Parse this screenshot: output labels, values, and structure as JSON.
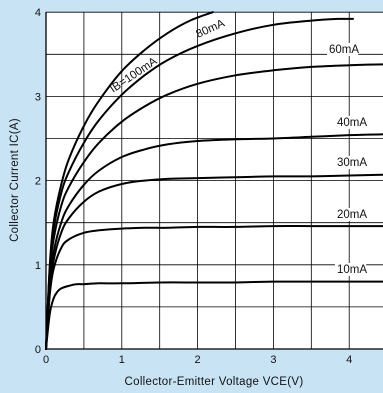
{
  "chart_data": {
    "type": "line",
    "title": "",
    "xlabel": "Collector-Emitter Voltage VCE(V)",
    "ylabel": "Collector Current IC(A)",
    "xlim": [
      0,
      4.45
    ],
    "ylim": [
      0,
      4
    ],
    "x_ticks": [
      "0",
      "1",
      "2",
      "3",
      "4"
    ],
    "y_ticks": [
      "0",
      "1",
      "2",
      "3",
      "4"
    ],
    "grid": true,
    "background_color": "#c8e4f4",
    "plot_color": "#ffffff",
    "line_color": "#000000",
    "series": [
      {
        "name": "IB=100mA",
        "x": [
          0.0,
          0.05,
          0.1,
          0.2,
          0.3,
          0.5,
          0.7,
          1.0,
          1.3,
          1.6,
          1.9,
          2.2
        ],
        "y": [
          0.0,
          1.0,
          1.5,
          1.95,
          2.25,
          2.65,
          2.95,
          3.3,
          3.55,
          3.75,
          3.9,
          4.0
        ]
      },
      {
        "name": "80mA",
        "x": [
          0.0,
          0.05,
          0.1,
          0.2,
          0.3,
          0.5,
          0.7,
          1.0,
          1.3,
          1.6,
          2.0,
          2.5,
          3.0,
          3.5,
          3.85,
          4.05
        ],
        "y": [
          0.0,
          0.95,
          1.42,
          1.85,
          2.1,
          2.45,
          2.72,
          3.02,
          3.25,
          3.43,
          3.6,
          3.75,
          3.85,
          3.9,
          3.92,
          3.92
        ]
      },
      {
        "name": "60mA",
        "x": [
          0.0,
          0.05,
          0.1,
          0.2,
          0.3,
          0.5,
          0.7,
          1.0,
          1.3,
          1.6,
          2.0,
          2.5,
          3.0,
          3.5,
          4.0,
          4.45
        ],
        "y": [
          0.0,
          0.9,
          1.3,
          1.7,
          1.92,
          2.22,
          2.45,
          2.7,
          2.88,
          3.02,
          3.15,
          3.25,
          3.31,
          3.35,
          3.37,
          3.38
        ]
      },
      {
        "name": "40mA",
        "x": [
          0.0,
          0.05,
          0.1,
          0.2,
          0.3,
          0.5,
          0.7,
          1.0,
          1.3,
          1.6,
          2.0,
          2.5,
          3.0,
          3.5,
          4.0,
          4.45
        ],
        "y": [
          0.0,
          0.8,
          1.15,
          1.5,
          1.7,
          1.95,
          2.12,
          2.28,
          2.37,
          2.43,
          2.47,
          2.49,
          2.5,
          2.52,
          2.54,
          2.55
        ]
      },
      {
        "name": "30mA",
        "x": [
          0.0,
          0.05,
          0.1,
          0.2,
          0.3,
          0.5,
          0.7,
          1.0,
          1.3,
          1.6,
          2.0,
          2.5,
          3.0,
          3.5,
          4.0,
          4.45
        ],
        "y": [
          0.0,
          0.7,
          1.05,
          1.38,
          1.55,
          1.75,
          1.87,
          1.96,
          2.0,
          2.02,
          2.03,
          2.04,
          2.05,
          2.05,
          2.06,
          2.07
        ]
      },
      {
        "name": "20mA",
        "x": [
          0.0,
          0.05,
          0.1,
          0.2,
          0.3,
          0.5,
          0.7,
          1.0,
          1.3,
          1.6,
          2.0,
          2.5,
          3.0,
          3.5,
          4.0,
          4.45
        ],
        "y": [
          0.0,
          0.65,
          0.95,
          1.2,
          1.3,
          1.38,
          1.41,
          1.43,
          1.44,
          1.44,
          1.45,
          1.45,
          1.46,
          1.46,
          1.46,
          1.46
        ]
      },
      {
        "name": "10mA",
        "x": [
          0.0,
          0.05,
          0.1,
          0.15,
          0.2,
          0.3,
          0.4,
          0.5,
          0.7,
          1.0,
          1.5,
          2.0,
          2.5,
          3.0,
          3.5,
          4.0,
          4.45
        ],
        "y": [
          0.0,
          0.42,
          0.6,
          0.68,
          0.72,
          0.75,
          0.77,
          0.77,
          0.78,
          0.78,
          0.79,
          0.79,
          0.79,
          0.8,
          0.8,
          0.8,
          0.8
        ]
      }
    ]
  }
}
